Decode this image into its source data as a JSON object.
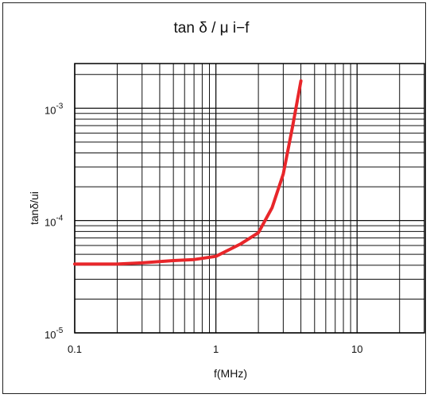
{
  "chart_data": {
    "type": "line",
    "title": "tan δ / μ i−f",
    "xlabel": "f(MHz)",
    "ylabel": "tanδ/ui",
    "x_scale": "log",
    "y_scale": "log",
    "xlim": [
      0.1,
      30
    ],
    "ylim": [
      1e-05,
      0.0025
    ],
    "x_ticks": [
      {
        "value": 0.1,
        "label": "0.1"
      },
      {
        "value": 1,
        "label": "1"
      },
      {
        "value": 10,
        "label": "10"
      }
    ],
    "y_ticks": [
      {
        "value": 1e-05,
        "base": "10",
        "exp": "-5"
      },
      {
        "value": 0.0001,
        "base": "10",
        "exp": "-4"
      },
      {
        "value": 0.001,
        "base": "10",
        "exp": "-3"
      }
    ],
    "grid": true,
    "legend": "none",
    "series": [
      {
        "color": "#e8262a",
        "x": [
          0.1,
          0.2,
          0.3,
          0.5,
          0.7,
          1.0,
          1.5,
          2.0,
          2.5,
          3.0,
          3.5,
          4.0
        ],
        "y": [
          4.1e-05,
          4.1e-05,
          4.2e-05,
          4.4e-05,
          4.5e-05,
          4.8e-05,
          6.2e-05,
          7.8e-05,
          0.00013,
          0.00026,
          0.0007,
          0.00175
        ]
      }
    ]
  }
}
